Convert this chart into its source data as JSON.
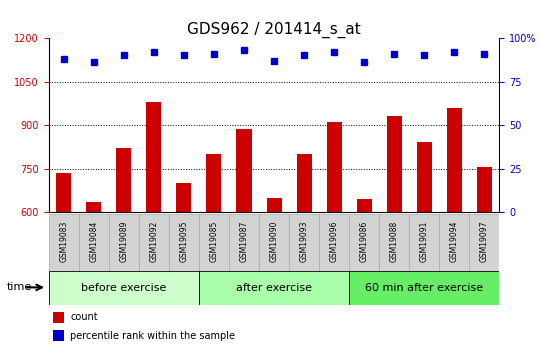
{
  "title": "GDS962 / 201414_s_at",
  "samples": [
    "GSM19083",
    "GSM19084",
    "GSM19089",
    "GSM19092",
    "GSM19095",
    "GSM19085",
    "GSM19087",
    "GSM19090",
    "GSM19093",
    "GSM19096",
    "GSM19086",
    "GSM19088",
    "GSM19091",
    "GSM19094",
    "GSM19097"
  ],
  "counts": [
    735,
    635,
    820,
    980,
    700,
    800,
    885,
    650,
    800,
    910,
    645,
    930,
    840,
    960,
    755
  ],
  "percentiles": [
    88,
    86,
    90,
    92,
    90,
    91,
    93,
    87,
    90,
    92,
    86,
    91,
    90,
    92,
    91
  ],
  "groups": [
    {
      "label": "before exercise",
      "start": 0,
      "end": 5,
      "color": "#ccffcc"
    },
    {
      "label": "after exercise",
      "start": 5,
      "end": 10,
      "color": "#aaffaa"
    },
    {
      "label": "60 min after exercise",
      "start": 10,
      "end": 15,
      "color": "#66ee66"
    }
  ],
  "ylim_left": [
    600,
    1200
  ],
  "yticks_left": [
    600,
    750,
    900,
    1050,
    1200
  ],
  "ylim_right": [
    0,
    100
  ],
  "yticks_right": [
    0,
    25,
    50,
    75,
    100
  ],
  "bar_color": "#cc0000",
  "dot_color": "#0000cc",
  "bar_width": 0.5,
  "plot_bg_color": "#ffffff",
  "label_bg_color": "#d3d3d3",
  "legend_count_label": "count",
  "legend_pct_label": "percentile rank within the sample",
  "time_label": "time",
  "title_fontsize": 11,
  "tick_fontsize": 7,
  "sample_fontsize": 5.5,
  "group_fontsize": 8,
  "legend_fontsize": 7
}
